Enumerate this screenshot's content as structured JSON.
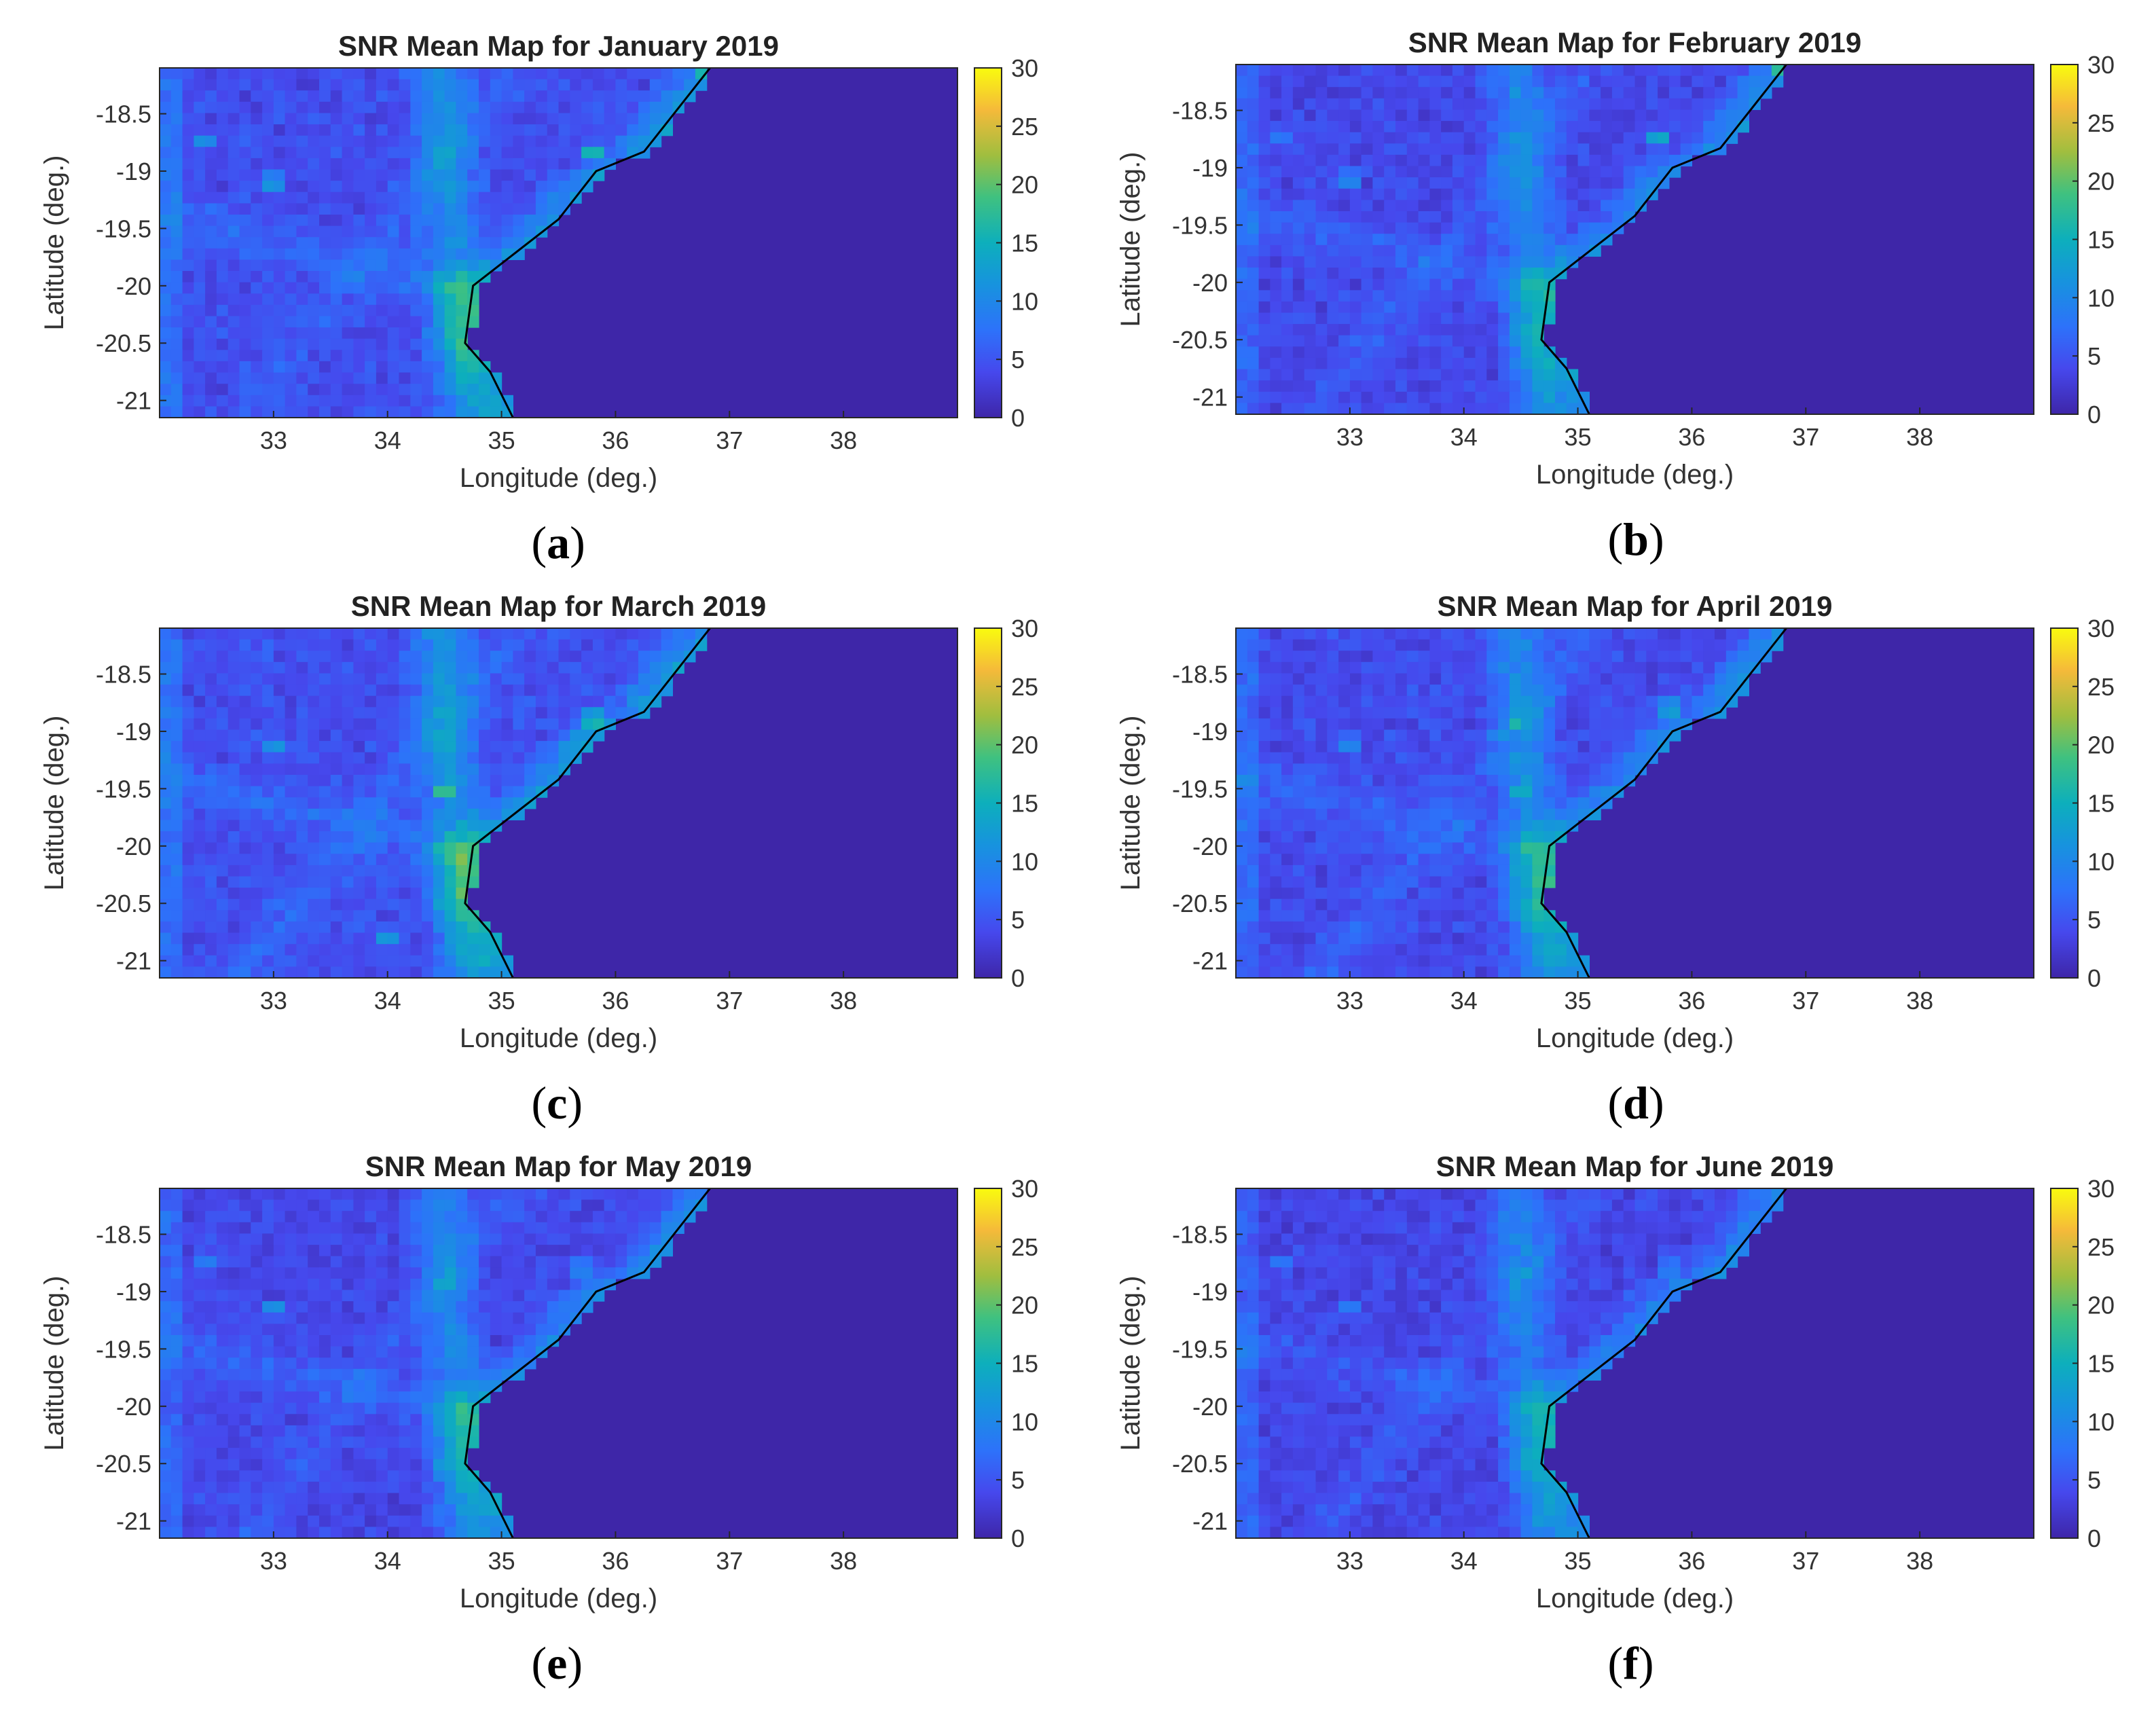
{
  "figure": {
    "colormap": "parula",
    "colors": {
      "ocean": "#3e26a8",
      "coastline": "#000000",
      "axis": "#262626",
      "text": "#333333"
    }
  },
  "chart_data": [
    {
      "type": "heatmap",
      "label": "a",
      "title": "SNR Mean Map for January 2019",
      "xlabel": "Longitude (deg.)",
      "ylabel": "Latitude (deg.)",
      "xlim": [
        32,
        39
      ],
      "ylim": [
        -21.15,
        -18.1
      ],
      "xticks": [
        33,
        34,
        35,
        36,
        37,
        38
      ],
      "yticks": [
        -18.5,
        -19,
        -19.5,
        -20,
        -20.5,
        -21
      ],
      "colorbar": {
        "min": 0,
        "max": 30,
        "ticks": [
          0,
          5,
          10,
          15,
          20,
          25,
          30
        ]
      },
      "coastline": [
        [
          36.83,
          -18.1
        ],
        [
          36.25,
          -18.83
        ],
        [
          35.83,
          -19.0
        ],
        [
          35.5,
          -19.42
        ],
        [
          34.75,
          -20.0
        ],
        [
          34.68,
          -20.5
        ],
        [
          34.9,
          -20.75
        ],
        [
          35.1,
          -21.15
        ]
      ],
      "hotspots": [
        [
          33.0,
          -19.1,
          15
        ],
        [
          32.4,
          -18.75,
          12
        ],
        [
          34.45,
          -18.85,
          14
        ],
        [
          34.6,
          -20.05,
          14
        ],
        [
          35.8,
          -18.85,
          19
        ],
        [
          34.8,
          -20.75,
          16
        ],
        [
          36.8,
          -18.1,
          24
        ]
      ],
      "seed": 11,
      "intensity": 1.0
    },
    {
      "type": "heatmap",
      "label": "b",
      "title": "SNR Mean Map for February 2019",
      "xlabel": "Longitude (deg.)",
      "ylabel": "Latitude (deg.)",
      "xlim": [
        32,
        39
      ],
      "ylim": [
        -21.15,
        -18.1
      ],
      "xticks": [
        33,
        34,
        35,
        36,
        37,
        38
      ],
      "yticks": [
        -18.5,
        -19,
        -19.5,
        -20,
        -20.5,
        -21
      ],
      "colorbar": {
        "min": 0,
        "max": 30,
        "ticks": [
          0,
          5,
          10,
          15,
          20,
          25,
          30
        ]
      },
      "coastline": [
        [
          36.83,
          -18.1
        ],
        [
          36.25,
          -18.83
        ],
        [
          35.83,
          -19.0
        ],
        [
          35.5,
          -19.42
        ],
        [
          34.75,
          -20.0
        ],
        [
          34.68,
          -20.5
        ],
        [
          34.9,
          -20.75
        ],
        [
          35.1,
          -21.15
        ]
      ],
      "hotspots": [
        [
          33.0,
          -19.1,
          14
        ],
        [
          32.4,
          -18.75,
          11
        ],
        [
          35.7,
          -18.75,
          18
        ],
        [
          34.7,
          -20.1,
          13
        ],
        [
          34.9,
          -20.9,
          15
        ],
        [
          36.8,
          -18.15,
          22
        ]
      ],
      "seed": 23,
      "intensity": 0.9
    },
    {
      "type": "heatmap",
      "label": "c",
      "title": "SNR Mean Map for March 2019",
      "xlabel": "Longitude (deg.)",
      "ylabel": "Latitude (deg.)",
      "xlim": [
        32,
        39
      ],
      "ylim": [
        -21.15,
        -18.1
      ],
      "xticks": [
        33,
        34,
        35,
        36,
        37,
        38
      ],
      "yticks": [
        -18.5,
        -19,
        -19.5,
        -20,
        -20.5,
        -21
      ],
      "colorbar": {
        "min": 0,
        "max": 30,
        "ticks": [
          0,
          5,
          10,
          15,
          20,
          25,
          30
        ]
      },
      "coastline": [
        [
          36.83,
          -18.1
        ],
        [
          36.25,
          -18.83
        ],
        [
          35.83,
          -19.0
        ],
        [
          35.5,
          -19.42
        ],
        [
          34.75,
          -20.0
        ],
        [
          34.68,
          -20.5
        ],
        [
          34.9,
          -20.75
        ],
        [
          35.1,
          -21.15
        ]
      ],
      "hotspots": [
        [
          33.0,
          -19.15,
          13
        ],
        [
          34.5,
          -19.5,
          21
        ],
        [
          35.8,
          -18.9,
          20
        ],
        [
          34.6,
          -20.1,
          15
        ],
        [
          34.0,
          -20.8,
          14
        ],
        [
          34.9,
          -20.85,
          15
        ]
      ],
      "seed": 37,
      "intensity": 1.05
    },
    {
      "type": "heatmap",
      "label": "d",
      "title": "SNR Mean Map for April 2019",
      "xlabel": "Longitude (deg.)",
      "ylabel": "Latitude (deg.)",
      "xlim": [
        32,
        39
      ],
      "ylim": [
        -21.15,
        -18.1
      ],
      "xticks": [
        33,
        34,
        35,
        36,
        37,
        38
      ],
      "yticks": [
        -18.5,
        -19,
        -19.5,
        -20,
        -20.5,
        -21
      ],
      "colorbar": {
        "min": 0,
        "max": 30,
        "ticks": [
          0,
          5,
          10,
          15,
          20,
          25,
          30
        ]
      },
      "coastline": [
        [
          36.83,
          -18.1
        ],
        [
          36.25,
          -18.83
        ],
        [
          35.83,
          -19.0
        ],
        [
          35.5,
          -19.42
        ],
        [
          34.75,
          -20.0
        ],
        [
          34.68,
          -20.5
        ],
        [
          34.9,
          -20.75
        ],
        [
          35.1,
          -21.15
        ]
      ],
      "hotspots": [
        [
          33.0,
          -19.1,
          13
        ],
        [
          34.45,
          -18.9,
          20
        ],
        [
          34.5,
          -19.5,
          20
        ],
        [
          35.8,
          -18.8,
          17
        ],
        [
          34.6,
          -20.2,
          14
        ],
        [
          34.9,
          -20.85,
          15
        ]
      ],
      "seed": 41,
      "intensity": 0.95
    },
    {
      "type": "heatmap",
      "label": "e",
      "title": "SNR Mean Map for May 2019",
      "xlabel": "Longitude (deg.)",
      "ylabel": "Latitude (deg.)",
      "xlim": [
        32,
        39
      ],
      "ylim": [
        -21.15,
        -18.1
      ],
      "xticks": [
        33,
        34,
        35,
        36,
        37,
        38
      ],
      "yticks": [
        -18.5,
        -19,
        -19.5,
        -20,
        -20.5,
        -21
      ],
      "colorbar": {
        "min": 0,
        "max": 30,
        "ticks": [
          0,
          5,
          10,
          15,
          20,
          25,
          30
        ]
      },
      "coastline": [
        [
          36.83,
          -18.1
        ],
        [
          36.25,
          -18.83
        ],
        [
          35.83,
          -19.0
        ],
        [
          35.5,
          -19.42
        ],
        [
          34.75,
          -20.0
        ],
        [
          34.68,
          -20.5
        ],
        [
          34.9,
          -20.75
        ],
        [
          35.1,
          -21.15
        ]
      ],
      "hotspots": [
        [
          33.0,
          -19.15,
          14
        ],
        [
          32.4,
          -18.75,
          11
        ],
        [
          34.5,
          -18.9,
          19
        ],
        [
          35.7,
          -18.8,
          15
        ],
        [
          34.6,
          -20.1,
          14
        ],
        [
          34.9,
          -20.9,
          17
        ]
      ],
      "seed": 53,
      "intensity": 0.9
    },
    {
      "type": "heatmap",
      "label": "f",
      "title": "SNR Mean Map for June 2019",
      "xlabel": "Longitude (deg.)",
      "ylabel": "Latitude (deg.)",
      "xlim": [
        32,
        39
      ],
      "ylim": [
        -21.15,
        -18.1
      ],
      "xticks": [
        33,
        34,
        35,
        36,
        37,
        38
      ],
      "yticks": [
        -18.5,
        -19,
        -19.5,
        -20,
        -20.5,
        -21
      ],
      "colorbar": {
        "min": 0,
        "max": 30,
        "ticks": [
          0,
          5,
          10,
          15,
          20,
          25,
          30
        ]
      },
      "coastline": [
        [
          36.83,
          -18.1
        ],
        [
          36.25,
          -18.83
        ],
        [
          35.83,
          -19.0
        ],
        [
          35.5,
          -19.42
        ],
        [
          34.75,
          -20.0
        ],
        [
          34.68,
          -20.5
        ],
        [
          34.9,
          -20.75
        ],
        [
          35.1,
          -21.15
        ]
      ],
      "hotspots": [
        [
          33.0,
          -19.15,
          13
        ],
        [
          32.4,
          -18.75,
          10
        ],
        [
          35.8,
          -18.8,
          15
        ],
        [
          34.6,
          -20.1,
          13
        ],
        [
          34.9,
          -20.8,
          15
        ]
      ],
      "seed": 67,
      "intensity": 0.85
    }
  ]
}
